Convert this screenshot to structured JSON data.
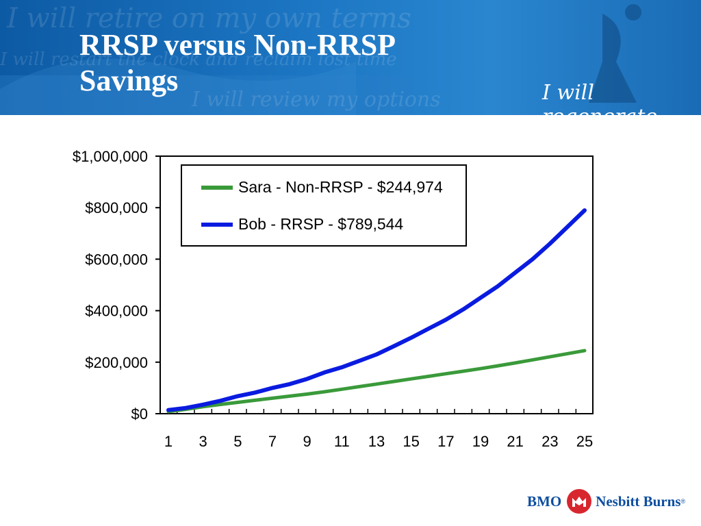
{
  "slide": {
    "title_line1": "RRSP versus Non-RRSP",
    "title_line2": "Savings",
    "tagline": "I will regenerate",
    "background_script": [
      "I will retire on my own terms",
      "I will restart the clock and reclaim lost time",
      "I will review my options"
    ]
  },
  "logo": {
    "left": "BMO",
    "right": "Nesbitt Burns",
    "mark": "®"
  },
  "colors": {
    "banner": "#1a6bb5",
    "sara": "#3a9a3a",
    "bob": "#0a1be0"
  },
  "chart_data": {
    "type": "line",
    "x": [
      1,
      2,
      3,
      4,
      5,
      6,
      7,
      8,
      9,
      10,
      11,
      12,
      13,
      14,
      15,
      16,
      17,
      18,
      19,
      20,
      21,
      22,
      23,
      24,
      25
    ],
    "x_tick_labels": [
      "1",
      "3",
      "5",
      "7",
      "9",
      "11",
      "13",
      "15",
      "17",
      "19",
      "21",
      "23",
      "25"
    ],
    "y_tick_labels": [
      "$0",
      "$200,000",
      "$400,000",
      "$600,000",
      "$800,000",
      "$1,000,000"
    ],
    "ylim": [
      0,
      1000000
    ],
    "grid": false,
    "legend_position": "top-left",
    "series": [
      {
        "name": "Sara - Non-RRSP - $244,974",
        "color": "#3a9a3a",
        "values": [
          8000,
          17000,
          27000,
          36000,
          44000,
          52000,
          60000,
          68000,
          76000,
          85000,
          95000,
          105000,
          115000,
          125000,
          135000,
          145000,
          155000,
          165000,
          175000,
          186000,
          197000,
          209000,
          221000,
          233000,
          244974
        ]
      },
      {
        "name": "Bob - RRSP - $789,544",
        "color": "#0a1be0",
        "values": [
          14000,
          22000,
          35000,
          50000,
          68000,
          82000,
          100000,
          115000,
          135000,
          160000,
          180000,
          205000,
          230000,
          262000,
          295000,
          330000,
          365000,
          405000,
          450000,
          495000,
          548000,
          600000,
          660000,
          725000,
          789544
        ]
      }
    ]
  }
}
